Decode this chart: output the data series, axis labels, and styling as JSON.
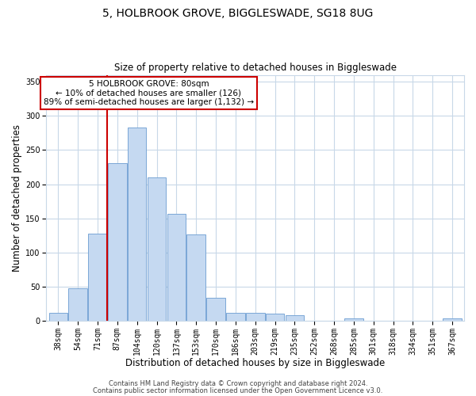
{
  "title": "5, HOLBROOK GROVE, BIGGLESWADE, SG18 8UG",
  "subtitle": "Size of property relative to detached houses in Biggleswade",
  "xlabel": "Distribution of detached houses by size in Biggleswade",
  "ylabel": "Number of detached properties",
  "bar_labels": [
    "38sqm",
    "54sqm",
    "71sqm",
    "87sqm",
    "104sqm",
    "120sqm",
    "137sqm",
    "153sqm",
    "170sqm",
    "186sqm",
    "203sqm",
    "219sqm",
    "235sqm",
    "252sqm",
    "268sqm",
    "285sqm",
    "301sqm",
    "318sqm",
    "334sqm",
    "351sqm",
    "367sqm"
  ],
  "bar_values": [
    11,
    47,
    127,
    231,
    283,
    210,
    157,
    126,
    34,
    11,
    11,
    10,
    8,
    0,
    0,
    3,
    0,
    0,
    0,
    0,
    3
  ],
  "bar_color": "#c5d9f1",
  "bar_edge_color": "#7aa6d6",
  "ylim": [
    0,
    360
  ],
  "yticks": [
    0,
    50,
    100,
    150,
    200,
    250,
    300,
    350
  ],
  "vline_x": 2.5,
  "vline_color": "#cc0000",
  "annotation_title": "5 HOLBROOK GROVE: 80sqm",
  "annotation_line1": "← 10% of detached houses are smaller (126)",
  "annotation_line2": "89% of semi-detached houses are larger (1,132) →",
  "annotation_box_color": "#ffffff",
  "annotation_box_edge": "#cc0000",
  "footer1": "Contains HM Land Registry data © Crown copyright and database right 2024.",
  "footer2": "Contains public sector information licensed under the Open Government Licence v3.0.",
  "background_color": "#ffffff",
  "grid_color": "#c8d8e8",
  "title_fontsize": 10,
  "subtitle_fontsize": 8.5,
  "axis_label_fontsize": 8.5,
  "tick_fontsize": 7,
  "annotation_fontsize": 7.5,
  "footer_fontsize": 6
}
